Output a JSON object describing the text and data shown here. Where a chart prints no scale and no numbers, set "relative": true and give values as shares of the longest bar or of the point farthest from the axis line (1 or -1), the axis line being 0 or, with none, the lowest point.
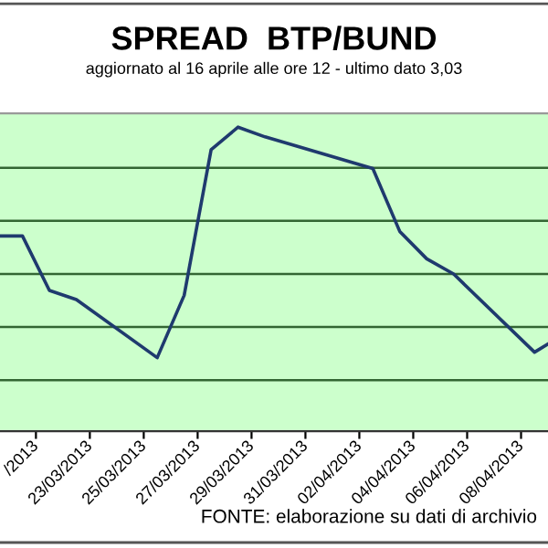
{
  "chart_data": {
    "type": "line",
    "title": "SPREAD  BTP/BUND",
    "subtitle": "aggiornato al 16 aprile alle ore 12 - ultimo dato 3,03",
    "relative": true,
    "x": [
      "2013-03-19T16:00",
      "2013-03-20T12:00",
      "2013-03-21T12:00",
      "2013-03-22T12:00",
      "2013-03-25T12:00",
      "2013-03-26T12:00",
      "2013-03-27T12:00",
      "2013-03-28T12:00",
      "2013-03-29T12:00",
      "2013-04-02T12:00",
      "2013-04-03T12:00",
      "2013-04-04T12:00",
      "2013-04-05T12:00",
      "2013-04-08T12:00",
      "2013-04-09T00:00"
    ],
    "series": [
      {
        "color": "#1f3a6e",
        "values": [
          0.642,
          0.642,
          0.463,
          0.433,
          0.242,
          0.447,
          0.926,
          1,
          0.968,
          0.864,
          0.657,
          0.567,
          0.517,
          0.26,
          0.287
        ]
      }
    ],
    "xlim": [
      "2013-03-19T16:00",
      "2013-04-09T00:00"
    ],
    "xticks": [
      {
        "value": "2013-03-21",
        "label": "/2013"
      },
      {
        "value": "2013-03-23",
        "label": "23/03/2013"
      },
      {
        "value": "2013-03-25",
        "label": "25/03/2013"
      },
      {
        "value": "2013-03-27",
        "label": "27/03/2013"
      },
      {
        "value": "2013-03-29",
        "label": "29/03/2013"
      },
      {
        "value": "2013-03-31",
        "label": "31/03/2013"
      },
      {
        "value": "2013-04-02",
        "label": "02/04/2013"
      },
      {
        "value": "2013-04-04",
        "label": "04/04/2013"
      },
      {
        "value": "2013-04-06",
        "label": "06/04/2013"
      },
      {
        "value": "2013-04-08",
        "label": "08/04/2013"
      }
    ],
    "ref_lines": [
      {
        "axis": "y",
        "value": 0.168,
        "color": "#336633"
      },
      {
        "axis": "y",
        "value": 0.343,
        "color": "#336633"
      },
      {
        "axis": "y",
        "value": 0.517,
        "color": "#336633"
      },
      {
        "axis": "y",
        "value": 0.692,
        "color": "#336633"
      },
      {
        "axis": "y",
        "value": 0.866,
        "color": "#336633"
      }
    ],
    "marker": "none",
    "line_style": "solid",
    "annotations": [
      "FONTE: elaborazione su dati di archivio"
    ]
  }
}
